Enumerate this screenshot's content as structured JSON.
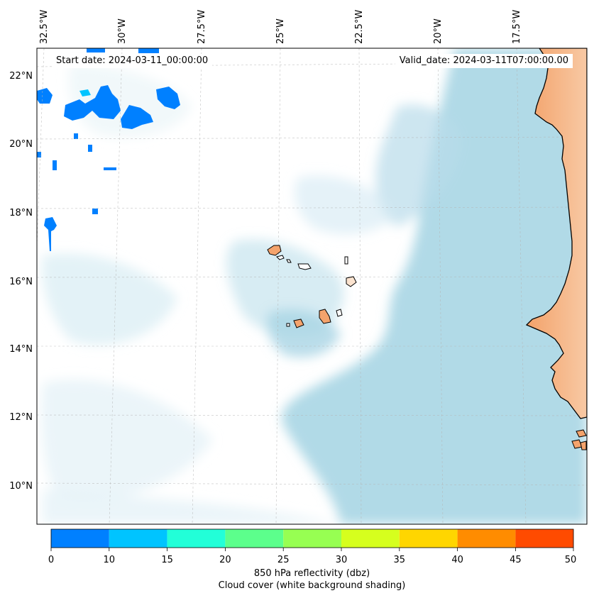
{
  "start_date": "Start date: 2024-03-11_00:00:00",
  "valid_date": "Valid_date: 2024-03-11T07:00:00.00",
  "lon_ticks": [
    "32.5°W",
    "30°W",
    "27.5°W",
    "25°W",
    "22.5°W",
    "20°W",
    "17.5°W"
  ],
  "lat_ticks": [
    "22°N",
    "20°N",
    "18°N",
    "16°N",
    "14°N",
    "12°N",
    "10°N"
  ],
  "colorbar": {
    "ticks": [
      "0",
      "10",
      "15",
      "20",
      "25",
      "30",
      "35",
      "40",
      "45",
      "50"
    ],
    "colors": [
      "#0080ff",
      "#00c4ff",
      "#22ffd8",
      "#5cff8c",
      "#97ff52",
      "#d6ff1e",
      "#ffd600",
      "#ff8c00",
      "#ff4b00"
    ],
    "label_line1": "850 hPa reflectivity (dbz)",
    "label_line2": "Cloud cover (white background shading)"
  },
  "colors": {
    "ocean_cloud": "#add8e6",
    "land": "#f4a36c",
    "coast": "#000000",
    "reflectivity_low": "#0080ff"
  }
}
